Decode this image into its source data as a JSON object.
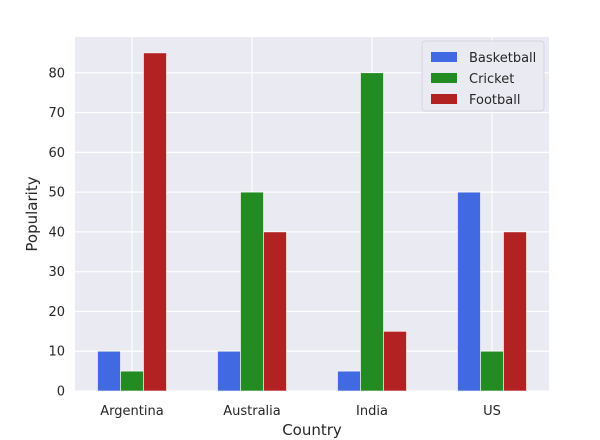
{
  "chart_data": {
    "type": "bar",
    "xlabel": "Country",
    "ylabel": "Popularity",
    "categories": [
      "Argentina",
      "Australia",
      "India",
      "US"
    ],
    "series": [
      {
        "name": "Basketball",
        "color": "#4169e1",
        "values": [
          10,
          10,
          5,
          50
        ]
      },
      {
        "name": "Cricket",
        "color": "#228b22",
        "values": [
          5,
          50,
          80,
          10
        ]
      },
      {
        "name": "Football",
        "color": "#b22222",
        "values": [
          85,
          40,
          15,
          40
        ]
      }
    ],
    "ylim": [
      0,
      89
    ],
    "yticks": [
      0,
      10,
      20,
      30,
      40,
      50,
      60,
      70,
      80
    ],
    "grid": true,
    "legend": "top-right",
    "background": "#eaeaf2"
  }
}
